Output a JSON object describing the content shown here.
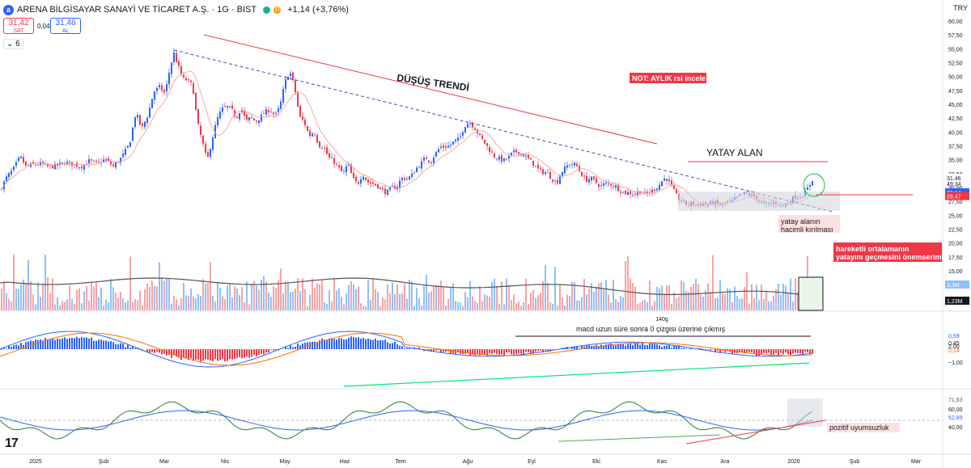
{
  "header": {
    "logo_letter": "a",
    "title": "ARENA BİLGİSAYAR SANAYİ VE TİCARET A.Ş. · 1G · BIST",
    "delayed_badge": "D",
    "change": "+1,14 (+3,76%)",
    "sell_price": "31,42",
    "sell_label": "SAT",
    "spread": "0,04",
    "buy_price": "31,46",
    "buy_label": "AL",
    "indicator_count": "6",
    "currency": "TRY"
  },
  "colors": {
    "up": "#2962ff",
    "down": "#f23645",
    "trendline": "#3f51b5",
    "annotation_red": "#f23645",
    "ma_pink": "#f7a9a0",
    "macd_line": "#2962ff",
    "signal_line": "#ff6d00",
    "rsi_line": "#2e7d32",
    "rsi_ma": "#2962ff",
    "positive_divergence": "#00e676"
  },
  "chart_data": {
    "type": "candlestick",
    "price_ticks": [
      "60,00",
      "57,50",
      "55,00",
      "52,50",
      "50,00",
      "47,50",
      "45,00",
      "42,50",
      "40,00",
      "37,50",
      "35,00",
      "32,50",
      "30,00",
      "27,50",
      "25,00",
      "22,50",
      "20,00",
      "17,50",
      "15,00"
    ],
    "price_range": [
      15,
      60
    ],
    "x_ticks": [
      "2025",
      "Şub",
      "Mar",
      "Nis",
      "May",
      "Haz",
      "Tem",
      "Ağu",
      "Eyl",
      "Eki",
      "Kas",
      "Ara",
      "2026",
      "Şub",
      "Mar"
    ],
    "close_path": [
      [
        0,
        29.5
      ],
      [
        8,
        31.8
      ],
      [
        16,
        33.2
      ],
      [
        25,
        35.6
      ],
      [
        32,
        33.8
      ],
      [
        40,
        34.1
      ],
      [
        50,
        34.3
      ],
      [
        60,
        33.7
      ],
      [
        70,
        33.9
      ],
      [
        80,
        34.5
      ],
      [
        90,
        34.2
      ],
      [
        100,
        33.7
      ],
      [
        110,
        34.8
      ],
      [
        120,
        34.3
      ],
      [
        130,
        35.1
      ],
      [
        140,
        33.8
      ],
      [
        150,
        35.4
      ],
      [
        160,
        37.8
      ],
      [
        168,
        43.6
      ],
      [
        175,
        40.5
      ],
      [
        183,
        43.2
      ],
      [
        190,
        47.2
      ],
      [
        197,
        48.1
      ],
      [
        204,
        46.9
      ],
      [
        210,
        51.5
      ],
      [
        215,
        54.2
      ],
      [
        220,
        51.9
      ],
      [
        226,
        49.6
      ],
      [
        232,
        49.3
      ],
      [
        238,
        48.4
      ],
      [
        244,
        41.6
      ],
      [
        250,
        38.3
      ],
      [
        256,
        34.7
      ],
      [
        262,
        38.6
      ],
      [
        268,
        42.2
      ],
      [
        274,
        44.1
      ],
      [
        280,
        44.6
      ],
      [
        286,
        44.1
      ],
      [
        292,
        42.5
      ],
      [
        298,
        44.4
      ],
      [
        304,
        41.9
      ],
      [
        310,
        42.7
      ],
      [
        316,
        41.8
      ],
      [
        322,
        42.7
      ],
      [
        328,
        43.7
      ],
      [
        334,
        44.0
      ],
      [
        340,
        42.9
      ],
      [
        346,
        44.6
      ],
      [
        352,
        48.9
      ],
      [
        358,
        51.0
      ],
      [
        364,
        48.1
      ],
      [
        370,
        42.8
      ],
      [
        376,
        41.8
      ],
      [
        382,
        39.3
      ],
      [
        388,
        40.1
      ],
      [
        394,
        37.6
      ],
      [
        400,
        37.3
      ],
      [
        406,
        35.4
      ],
      [
        412,
        34.8
      ],
      [
        418,
        33.6
      ],
      [
        424,
        32.5
      ],
      [
        430,
        34.3
      ],
      [
        436,
        31.6
      ],
      [
        442,
        30.6
      ],
      [
        448,
        32.5
      ],
      [
        454,
        31.0
      ],
      [
        460,
        30.7
      ],
      [
        466,
        30.4
      ],
      [
        472,
        29.5
      ],
      [
        478,
        29.1
      ],
      [
        484,
        30.0
      ],
      [
        490,
        30.0
      ],
      [
        496,
        31.7
      ],
      [
        502,
        31.6
      ],
      [
        508,
        32.0
      ],
      [
        514,
        33.4
      ],
      [
        520,
        34.3
      ],
      [
        526,
        35.4
      ],
      [
        532,
        34.6
      ],
      [
        538,
        36.1
      ],
      [
        544,
        37.3
      ],
      [
        550,
        37.3
      ],
      [
        556,
        37.6
      ],
      [
        562,
        38.4
      ],
      [
        568,
        38.8
      ],
      [
        574,
        41.1
      ],
      [
        580,
        41.8
      ],
      [
        586,
        40.9
      ],
      [
        592,
        39.4
      ],
      [
        598,
        38.2
      ],
      [
        604,
        37.0
      ],
      [
        610,
        35.7
      ],
      [
        616,
        35.3
      ],
      [
        622,
        34.8
      ],
      [
        628,
        35.4
      ],
      [
        634,
        36.3
      ],
      [
        640,
        36.5
      ],
      [
        646,
        35.9
      ],
      [
        652,
        35.3
      ],
      [
        658,
        34.4
      ],
      [
        664,
        33.4
      ],
      [
        670,
        32.8
      ],
      [
        676,
        32.7
      ],
      [
        682,
        31.6
      ],
      [
        688,
        30.8
      ],
      [
        694,
        32.8
      ],
      [
        700,
        33.8
      ],
      [
        706,
        34.3
      ],
      [
        712,
        34.1
      ],
      [
        718,
        32.5
      ],
      [
        724,
        31.3
      ],
      [
        730,
        31.7
      ],
      [
        736,
        31.0
      ],
      [
        742,
        30.2
      ],
      [
        748,
        30.7
      ],
      [
        754,
        30.6
      ],
      [
        760,
        30.3
      ],
      [
        766,
        29.5
      ],
      [
        772,
        29.0
      ],
      [
        778,
        29.1
      ],
      [
        784,
        28.7
      ],
      [
        790,
        29.4
      ],
      [
        796,
        28.8
      ],
      [
        802,
        29.0
      ],
      [
        808,
        29.6
      ],
      [
        814,
        30.3
      ],
      [
        820,
        31.6
      ],
      [
        826,
        31.5
      ],
      [
        832,
        29.6
      ],
      [
        838,
        28.0
      ],
      [
        844,
        27.4
      ],
      [
        850,
        26.9
      ],
      [
        856,
        27.2
      ],
      [
        862,
        26.8
      ],
      [
        868,
        27.1
      ],
      [
        874,
        26.9
      ],
      [
        880,
        27.3
      ],
      [
        886,
        27.1
      ],
      [
        892,
        26.8
      ],
      [
        898,
        27.4
      ],
      [
        904,
        27.4
      ],
      [
        910,
        28.1
      ],
      [
        916,
        28.7
      ],
      [
        922,
        29.0
      ],
      [
        928,
        28.5
      ],
      [
        934,
        28.3
      ],
      [
        940,
        27.3
      ],
      [
        946,
        26.9
      ],
      [
        952,
        27.1
      ],
      [
        958,
        27.3
      ],
      [
        964,
        26.9
      ],
      [
        970,
        26.8
      ],
      [
        976,
        27.5
      ],
      [
        982,
        28.4
      ],
      [
        988,
        28.3
      ],
      [
        994,
        28.9
      ],
      [
        1000,
        30.3
      ],
      [
        1004,
        31.46
      ]
    ],
    "last_price": "31,46",
    "countdown": "49:34",
    "level_1": "29,14",
    "level_2": "28,47",
    "volume_labels": {
      "vol_ma": "3,3M",
      "vol_last": "1,23M"
    },
    "macd_ticks": [
      "2,00",
      "0,59",
      "0,45",
      "0,14",
      "−1,00"
    ],
    "macd_bar_label": "140g",
    "rsi_ticks": [
      "71,63",
      "60,00",
      "52,89",
      "40,00"
    ]
  },
  "annotations": {
    "downtrend": "DÜŞÜŞ TRENDİ",
    "note": "NOT: AYLIK rsi incele",
    "range": "YATAY ALAN",
    "breakout": "yatay alanın hacimli kırılması",
    "ma_note": "hareketli ortalamanın yatayını geçmesini önemserim",
    "macd_note": "macd uzun süre sonra 0 çizgisi üzerine çıkmış",
    "divergence": "pozitif uyumsuzluk"
  },
  "branding": {
    "logo": "17"
  }
}
